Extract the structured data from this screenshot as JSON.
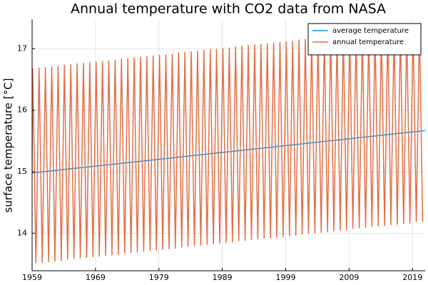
{
  "chart_data": {
    "type": "line",
    "title": "Annual temperature with CO2 data from NASA",
    "ylabel": "surface temperature [°C]",
    "xlim": [
      1959,
      2021
    ],
    "ylim": [
      13.39,
      17.48
    ],
    "xticks": [
      1959,
      1969,
      1979,
      1989,
      1999,
      2009,
      2019
    ],
    "yticks": [
      14,
      15,
      16,
      17
    ],
    "grid": true,
    "legend": "top-right",
    "series": [
      {
        "name": "average temperature",
        "color": "#009af9",
        "x": [
          1959,
          2021
        ],
        "values": [
          14.98,
          15.67
        ]
      },
      {
        "name": "annual temperature",
        "color": "#e26f46",
        "x": [
          1959,
          1959.1,
          1959.6,
          1960.1,
          1960.6,
          1961.1,
          1961.6,
          1962.1,
          1962.6,
          1963.1,
          1963.6,
          1964.1,
          1964.6,
          1965.1,
          1965.6,
          1966.1,
          1966.6,
          1967.1,
          1967.6,
          1968.1,
          1968.6,
          1969.1,
          1969.6,
          1970.1,
          1970.6,
          1971.1,
          1971.6,
          1972.1,
          1972.6,
          1973.1,
          1973.6,
          1974.1,
          1974.6,
          1975.1,
          1975.6,
          1976.1,
          1976.6,
          1977.1,
          1977.6,
          1978.1,
          1978.6,
          1979.1,
          1979.6,
          1980.1,
          1980.6,
          1981.1,
          1981.6,
          1982.1,
          1982.6,
          1983.1,
          1983.6,
          1984.1,
          1984.6,
          1985.1,
          1985.6,
          1986.1,
          1986.6,
          1987.1,
          1987.6,
          1988.1,
          1988.6,
          1989.1,
          1989.6,
          1990.1,
          1990.6,
          1991.1,
          1991.6,
          1992.1,
          1992.6,
          1993.1,
          1993.6,
          1994.1,
          1994.6,
          1995.1,
          1995.6,
          1996.1,
          1996.6,
          1997.1,
          1997.6,
          1998.1,
          1998.6,
          1999.1,
          1999.6,
          2000.1,
          2000.6,
          2001.1,
          2001.6,
          2002.1,
          2002.6,
          2003.1,
          2003.6,
          2004.1,
          2004.6,
          2005.1,
          2005.6,
          2006.1,
          2006.6,
          2007.1,
          2007.6,
          2008.1,
          2008.6,
          2009.1,
          2009.6,
          2010.1,
          2010.6,
          2011.1,
          2011.6,
          2012.1,
          2012.6,
          2013.1,
          2013.6,
          2014.1,
          2014.6,
          2015.1,
          2015.6,
          2016.1,
          2016.6,
          2017.1,
          2017.6,
          2018.1,
          2018.6,
          2019.1,
          2019.6,
          2020.1,
          2020.6
        ],
        "values": [
          14.98,
          16.68,
          13.51,
          16.69,
          13.52,
          16.7,
          13.53,
          16.71,
          13.54,
          16.72,
          13.55,
          16.74,
          13.57,
          16.75,
          13.58,
          16.76,
          13.59,
          16.77,
          13.6,
          16.78,
          13.61,
          16.79,
          13.62,
          16.8,
          13.63,
          16.81,
          13.64,
          16.82,
          13.65,
          16.84,
          13.67,
          16.85,
          13.68,
          16.86,
          13.69,
          16.87,
          13.7,
          16.88,
          13.71,
          16.89,
          13.72,
          16.9,
          13.73,
          16.91,
          13.74,
          16.92,
          13.75,
          16.94,
          13.77,
          16.95,
          13.78,
          16.96,
          13.79,
          16.97,
          13.8,
          16.98,
          13.81,
          16.99,
          13.82,
          17.0,
          13.83,
          17.01,
          13.84,
          17.02,
          13.85,
          17.04,
          13.87,
          17.05,
          13.88,
          17.06,
          13.89,
          17.07,
          13.9,
          17.08,
          13.91,
          17.09,
          13.92,
          17.1,
          13.93,
          17.11,
          13.94,
          17.12,
          13.95,
          17.13,
          13.96,
          17.15,
          13.98,
          17.16,
          13.99,
          17.17,
          14.0,
          17.18,
          14.01,
          17.19,
          14.02,
          17.2,
          14.03,
          17.21,
          14.04,
          17.22,
          14.05,
          17.24,
          14.07,
          17.25,
          14.08,
          17.26,
          14.09,
          17.27,
          14.1,
          17.28,
          14.11,
          17.29,
          14.12,
          17.3,
          14.13,
          17.31,
          14.14,
          17.32,
          14.15,
          17.33,
          14.16,
          17.35,
          14.18,
          17.36,
          14.19
        ]
      }
    ]
  }
}
